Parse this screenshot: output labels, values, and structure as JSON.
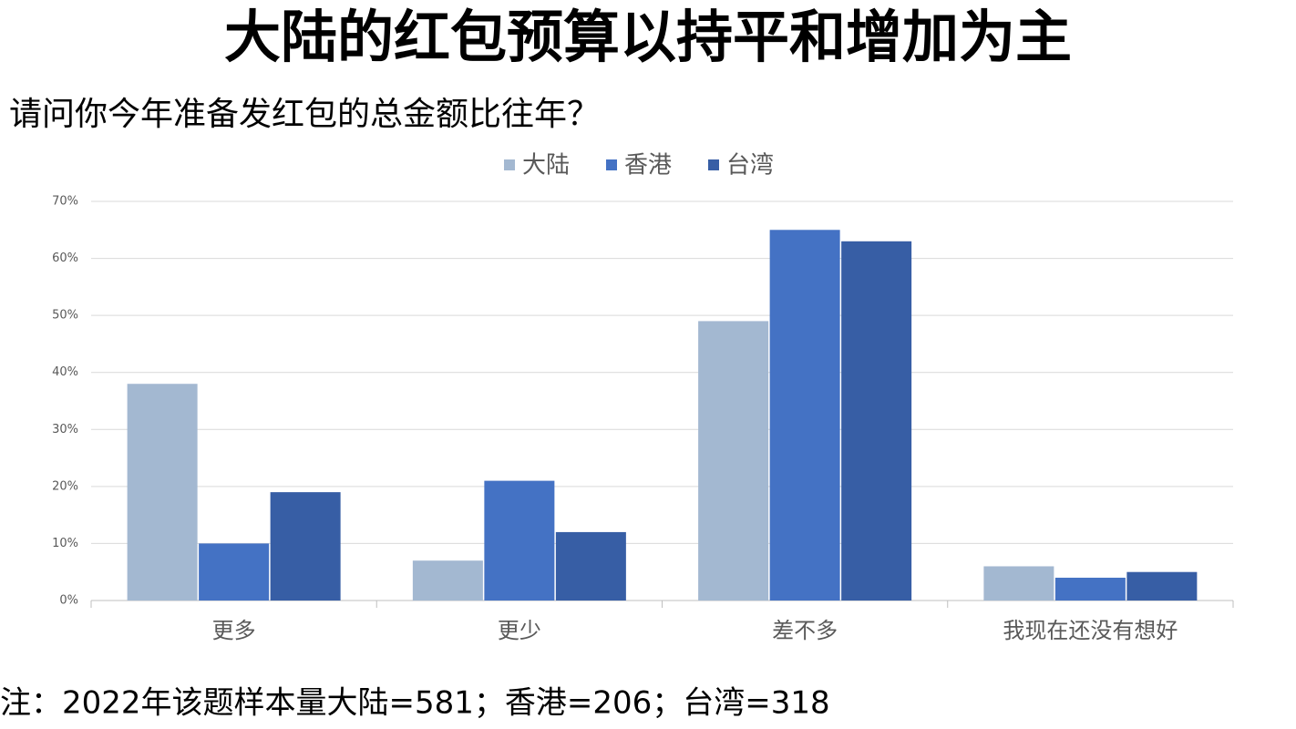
{
  "chart_data": {
    "type": "bar",
    "title": "大陆的红包预算以持平和增加为主",
    "subtitle": "请问你今年准备发红包的总金额比往年？",
    "note": "注：2022年该题样本量大陆=581；香港=206；台湾=318",
    "categories": [
      "更多",
      "更少",
      "差不多",
      "我现在还没有想好"
    ],
    "series": [
      {
        "name": "大陆",
        "color": "#a3b8d1",
        "values": [
          38,
          7,
          49,
          6
        ]
      },
      {
        "name": "香港",
        "color": "#4472c4",
        "values": [
          10,
          21,
          65,
          4
        ]
      },
      {
        "name": "台湾",
        "color": "#375ea5",
        "values": [
          19,
          12,
          63,
          5
        ]
      }
    ],
    "ylim": [
      0,
      70
    ],
    "yticks": [
      {
        "value": 0,
        "label": "0%"
      },
      {
        "value": 10,
        "label": "10%"
      },
      {
        "value": 20,
        "label": "20%"
      },
      {
        "value": 30,
        "label": "30%"
      },
      {
        "value": 40,
        "label": "40%"
      },
      {
        "value": 50,
        "label": "50%"
      },
      {
        "value": 60,
        "label": "60%"
      },
      {
        "value": 70,
        "label": "70%"
      }
    ],
    "grid": true,
    "legend": "top"
  }
}
